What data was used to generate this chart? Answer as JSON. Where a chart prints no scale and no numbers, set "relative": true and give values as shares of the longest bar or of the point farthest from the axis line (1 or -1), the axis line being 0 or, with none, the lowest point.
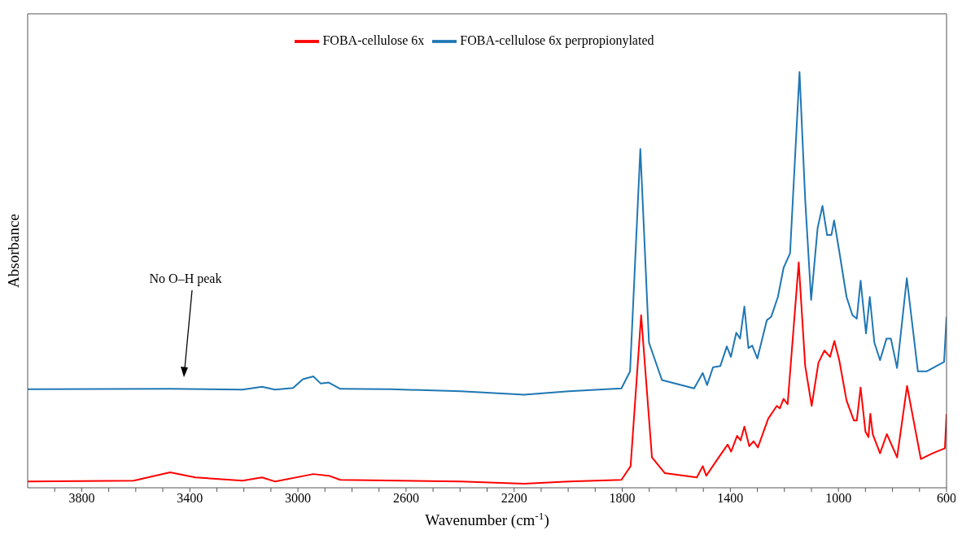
{
  "chart_data": {
    "type": "line",
    "relative": true,
    "xlabel": "Wavenumber (cm$^{-1}$)",
    "ylabel": "Absorbance",
    "xlim": [
      4000,
      600
    ],
    "xticks": [
      {
        "value": 3900,
        "label": null
      },
      3800,
      {
        "value": 3700,
        "label": null
      },
      {
        "value": 3600,
        "label": null
      },
      {
        "value": 3500,
        "label": null
      },
      3400,
      {
        "value": 3300,
        "label": null
      },
      {
        "value": 3200,
        "label": null
      },
      {
        "value": 3100,
        "label": null
      },
      3000,
      {
        "value": 2900,
        "label": null
      },
      {
        "value": 2800,
        "label": null
      },
      {
        "value": 2700,
        "label": null
      },
      2600,
      {
        "value": 2500,
        "label": null
      },
      {
        "value": 2400,
        "label": null
      },
      {
        "value": 2300,
        "label": null
      },
      2200,
      {
        "value": 2100,
        "label": null
      },
      {
        "value": 2000,
        "label": null
      },
      {
        "value": 1900,
        "label": null
      },
      1800,
      {
        "value": 1700,
        "label": null
      },
      {
        "value": 1600,
        "label": null
      },
      {
        "value": 1500,
        "label": null
      },
      1400,
      {
        "value": 1300,
        "label": null
      },
      {
        "value": 1200,
        "label": null
      },
      {
        "value": 1100,
        "label": null
      },
      1000,
      {
        "value": 900,
        "label": null
      },
      {
        "value": 800,
        "label": null
      },
      {
        "value": 700,
        "label": null
      },
      600
    ],
    "legend": "top",
    "grid": false,
    "marker": "none",
    "line_style": "solid",
    "annotations": [
      "No O–H peak"
    ],
    "series": [
      {
        "name": "FOBA-cellulose 6x",
        "color": "#ff0000",
        "x": [
          4000,
          3608,
          3473,
          3380,
          3205,
          3133,
          3084,
          2943,
          2886,
          2843,
          2398,
          2163,
          1997,
          1803,
          1769,
          1730,
          1690,
          1642,
          1524,
          1502,
          1489,
          1443,
          1410,
          1397,
          1375,
          1362,
          1348,
          1330,
          1314,
          1298,
          1260,
          1228,
          1217,
          1203,
          1188,
          1147,
          1123,
          1099,
          1074,
          1052,
          1031,
          1015,
          997,
          970,
          943,
          932,
          918,
          900,
          889,
          882,
          873,
          846,
          821,
          801,
          783,
          746,
          695,
          652,
          606,
          600
        ],
        "values": [
          0.015,
          0.017,
          0.037,
          0.025,
          0.017,
          0.025,
          0.015,
          0.033,
          0.029,
          0.019,
          0.015,
          0.01,
          0.015,
          0.019,
          0.052,
          0.415,
          0.073,
          0.035,
          0.025,
          0.052,
          0.029,
          0.073,
          0.104,
          0.087,
          0.125,
          0.114,
          0.147,
          0.1,
          0.112,
          0.097,
          0.166,
          0.197,
          0.191,
          0.214,
          0.201,
          0.542,
          0.293,
          0.197,
          0.301,
          0.33,
          0.315,
          0.353,
          0.307,
          0.21,
          0.162,
          0.162,
          0.241,
          0.135,
          0.122,
          0.178,
          0.129,
          0.083,
          0.129,
          0.1,
          0.073,
          0.245,
          0.069,
          0.083,
          0.095,
          0.178
        ]
      },
      {
        "name": "FOBA-cellulose 6x perpropionylated",
        "color": "#1f77b4",
        "x": [
          4000,
          3473,
          3205,
          3133,
          3084,
          3018,
          2982,
          2943,
          2916,
          2886,
          2843,
          2654,
          2398,
          2163,
          1997,
          1803,
          1771,
          1733,
          1701,
          1653,
          1534,
          1502,
          1486,
          1464,
          1437,
          1413,
          1398,
          1378,
          1364,
          1348,
          1333,
          1319,
          1300,
          1265,
          1249,
          1224,
          1203,
          1179,
          1144,
          1123,
          1101,
          1077,
          1059,
          1042,
          1026,
          1016,
          997,
          970,
          948,
          932,
          918,
          898,
          884,
          867,
          846,
          822,
          806,
          783,
          747,
          706,
          674,
          609,
          600
        ],
        "values": [
          0.237,
          0.238,
          0.236,
          0.243,
          0.236,
          0.24,
          0.261,
          0.268,
          0.251,
          0.253,
          0.238,
          0.237,
          0.232,
          0.224,
          0.232,
          0.239,
          0.28,
          0.815,
          0.349,
          0.259,
          0.239,
          0.276,
          0.247,
          0.29,
          0.293,
          0.34,
          0.315,
          0.373,
          0.359,
          0.436,
          0.336,
          0.342,
          0.311,
          0.403,
          0.411,
          0.459,
          0.529,
          0.564,
          1,
          0.693,
          0.452,
          0.625,
          0.678,
          0.608,
          0.608,
          0.643,
          0.569,
          0.459,
          0.415,
          0.407,
          0.498,
          0.371,
          0.459,
          0.349,
          0.307,
          0.359,
          0.359,
          0.288,
          0.504,
          0.28,
          0.28,
          0.303,
          0.411
        ]
      }
    ]
  }
}
